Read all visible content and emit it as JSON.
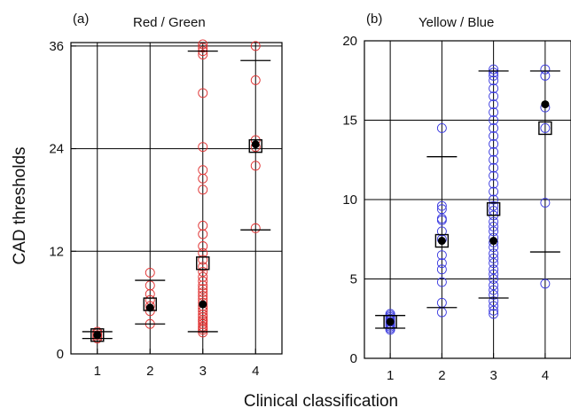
{
  "figure": {
    "xlabel": "Clinical classification",
    "ylabel": "CAD thresholds"
  },
  "chart_data": [
    {
      "type": "scatter",
      "panel_label": "(a)",
      "title": "Red / Green",
      "x_ticks": [
        "1",
        "2",
        "3",
        "4"
      ],
      "y_ticks": [
        "0",
        "12",
        "24",
        "36"
      ],
      "ylim": [
        0,
        36.4
      ],
      "xlim": [
        0.5,
        4.5
      ],
      "grid": true,
      "point_color": "#e03030",
      "individual_points": [
        {
          "x": 1,
          "y": [
            1.8,
            2.0,
            2.2,
            2.4,
            2.6
          ]
        },
        {
          "x": 2,
          "y": [
            3.5,
            5.0,
            5.6,
            6.3,
            7.0,
            8.0,
            9.5
          ]
        },
        {
          "x": 3,
          "y": [
            2.5,
            2.8,
            3.0,
            3.2,
            3.5,
            3.8,
            4.0,
            4.3,
            4.6,
            5.0,
            5.3,
            5.6,
            6.0,
            6.4,
            6.8,
            7.2,
            7.6,
            8.0,
            8.5,
            9.0,
            9.6,
            10.2,
            11.0,
            11.8,
            12.6,
            14.0,
            15.0,
            19.2,
            20.5,
            21.5,
            24.2,
            30.5,
            35.0,
            35.4,
            35.8,
            36.2
          ]
        },
        {
          "x": 4,
          "y": [
            14.7,
            22.0,
            24.2,
            25.0,
            32.0,
            36.0
          ]
        }
      ],
      "means": [
        {
          "x": 1,
          "y": 2.2
        },
        {
          "x": 2,
          "y": 5.8
        },
        {
          "x": 3,
          "y": 10.6
        },
        {
          "x": 4,
          "y": 24.3
        }
      ],
      "medians": [
        {
          "x": 1,
          "y": 2.2
        },
        {
          "x": 2,
          "y": 5.4
        },
        {
          "x": 3,
          "y": 5.8
        },
        {
          "x": 4,
          "y": 24.5
        }
      ],
      "whiskers": [
        {
          "x": 1,
          "low": 1.8,
          "high": 2.6
        },
        {
          "x": 2,
          "low": 3.5,
          "high": 8.6
        },
        {
          "x": 3,
          "low": 2.6,
          "high": 35.4
        },
        {
          "x": 4,
          "low": 14.5,
          "high": 34.3
        }
      ]
    },
    {
      "type": "scatter",
      "panel_label": "(b)",
      "title": "Yellow / Blue",
      "x_ticks": [
        "1",
        "2",
        "3",
        "4"
      ],
      "y_ticks": [
        "0",
        "5",
        "10",
        "15",
        "20"
      ],
      "ylim": [
        0,
        20
      ],
      "xlim": [
        0.5,
        4.5
      ],
      "grid": true,
      "point_color": "#3a3ae0",
      "individual_points": [
        {
          "x": 1,
          "y": [
            1.8,
            1.9,
            2.0,
            2.1,
            2.2,
            2.3,
            2.4,
            2.5,
            2.6,
            2.7,
            2.8
          ]
        },
        {
          "x": 2,
          "y": [
            2.9,
            3.5,
            4.8,
            5.6,
            6.0,
            6.5,
            7.5,
            8.0,
            8.7,
            8.8,
            9.4,
            9.6,
            14.5
          ]
        },
        {
          "x": 3,
          "y": [
            2.8,
            3.0,
            3.3,
            3.6,
            4.0,
            4.3,
            4.6,
            5.0,
            5.3,
            5.6,
            6.0,
            6.3,
            6.6,
            7.0,
            7.3,
            7.6,
            8.0,
            8.3,
            8.6,
            9.0,
            9.3,
            9.6,
            10.0,
            10.5,
            11.0,
            11.5,
            12.0,
            12.5,
            13.0,
            13.5,
            14.0,
            14.5,
            15.0,
            15.5,
            16.0,
            16.5,
            17.0,
            17.5,
            17.8,
            18.0,
            18.2
          ]
        },
        {
          "x": 4,
          "y": [
            4.7,
            9.8,
            14.5,
            15.8,
            17.8,
            18.2
          ]
        }
      ],
      "means": [
        {
          "x": 1,
          "y": 2.3
        },
        {
          "x": 2,
          "y": 7.4
        },
        {
          "x": 3,
          "y": 9.4
        },
        {
          "x": 4,
          "y": 14.5
        }
      ],
      "medians": [
        {
          "x": 1,
          "y": 2.3
        },
        {
          "x": 2,
          "y": 7.4
        },
        {
          "x": 3,
          "y": 7.4
        },
        {
          "x": 4,
          "y": 16.0
        }
      ],
      "whiskers": [
        {
          "x": 1,
          "low": 1.9,
          "high": 2.7
        },
        {
          "x": 2,
          "low": 3.2,
          "high": 12.7
        },
        {
          "x": 3,
          "low": 3.8,
          "high": 18.1
        },
        {
          "x": 4,
          "low": 6.7,
          "high": 18.1
        }
      ]
    }
  ]
}
